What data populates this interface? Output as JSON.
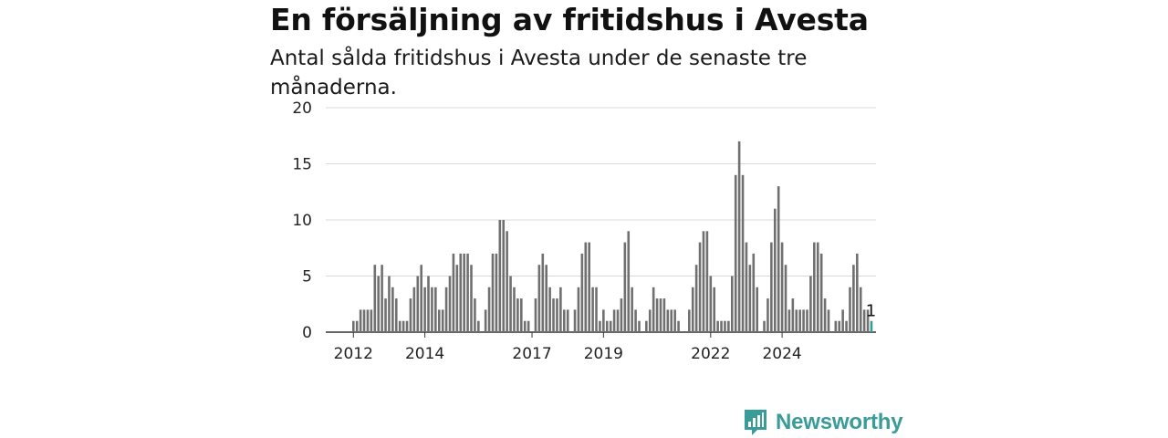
{
  "title": "En försäljning av fritidshus i Avesta",
  "subtitle": "Antal sålda fritidshus i Avesta under de senaste tre månaderna.",
  "logo": {
    "name": "newsworthy-logo",
    "text": "Newsworthy",
    "color": "#3a9c98"
  },
  "chart_data": {
    "type": "bar",
    "title": "En försäljning av fritidshus i Avesta",
    "subtitle": "Antal sålda fritidshus i Avesta under de senaste tre månaderna.",
    "xlabel": "",
    "ylabel": "",
    "ylim": [
      0,
      20
    ],
    "yticks": [
      0,
      5,
      10,
      15,
      20
    ],
    "xticks": [
      "2012",
      "2014",
      "2017",
      "2019",
      "2022",
      "2024"
    ],
    "xtick_indices": [
      0,
      20,
      50,
      70,
      100,
      120
    ],
    "x_start": "2012-01",
    "frequency": "monthly",
    "grid": true,
    "bar_color": "#707070",
    "highlight_color": "#3a9c98",
    "highlight_label": "1",
    "values": [
      1,
      1,
      2,
      2,
      2,
      2,
      6,
      5,
      6,
      3,
      5,
      4,
      3,
      1,
      1,
      1,
      3,
      4,
      5,
      6,
      4,
      5,
      4,
      4,
      2,
      2,
      4,
      5,
      7,
      6,
      7,
      7,
      7,
      6,
      3,
      1,
      0,
      2,
      4,
      7,
      7,
      10,
      10,
      9,
      5,
      4,
      3,
      3,
      1,
      1,
      0,
      3,
      6,
      7,
      6,
      4,
      3,
      3,
      4,
      2,
      2,
      0,
      2,
      4,
      7,
      8,
      8,
      4,
      4,
      1,
      2,
      1,
      1,
      2,
      2,
      3,
      8,
      9,
      4,
      2,
      1,
      0,
      1,
      2,
      4,
      3,
      3,
      3,
      2,
      2,
      2,
      1,
      0,
      0,
      2,
      4,
      6,
      8,
      9,
      9,
      5,
      4,
      1,
      1,
      1,
      1,
      5,
      14,
      17,
      14,
      8,
      6,
      7,
      4,
      0,
      1,
      3,
      8,
      11,
      13,
      8,
      6,
      2,
      3,
      2,
      2,
      2,
      2,
      5,
      8,
      8,
      7,
      3,
      2,
      0,
      1,
      1,
      2,
      1,
      4,
      6,
      7,
      4,
      2,
      2,
      1
    ]
  }
}
